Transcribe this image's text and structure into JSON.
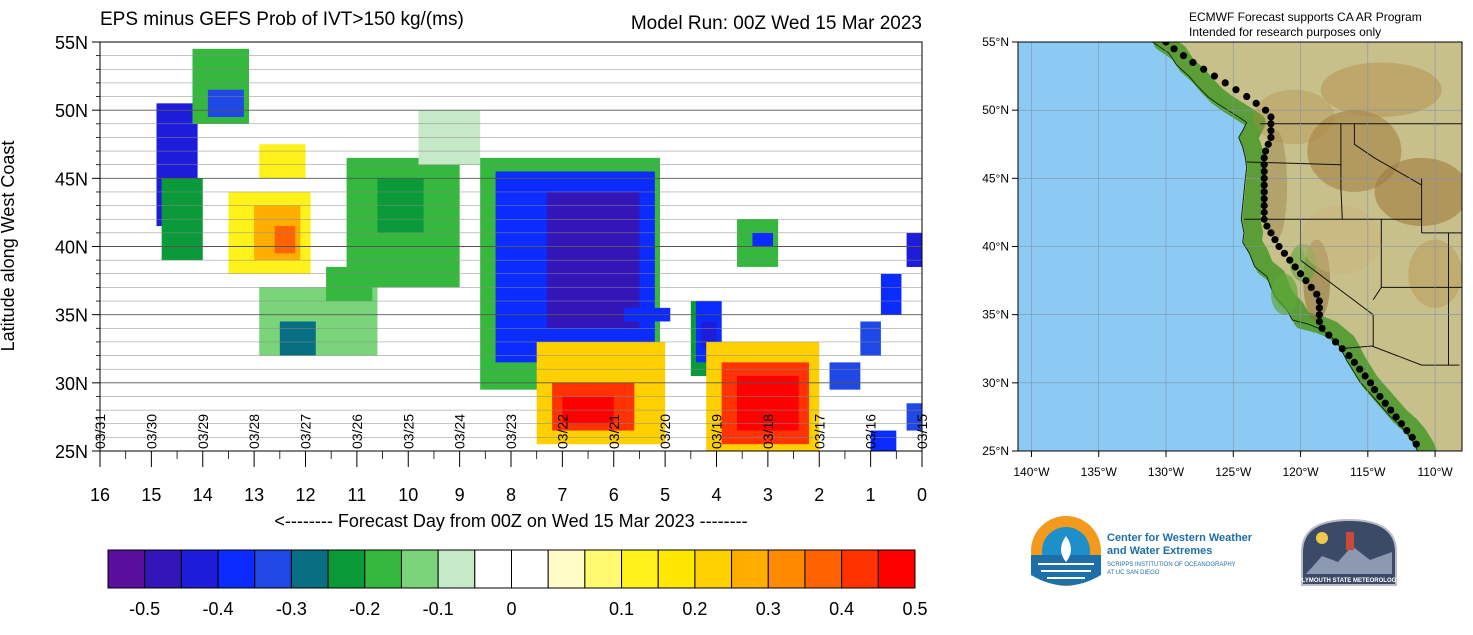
{
  "header": {
    "title": "EPS minus GEFS Prob of IVT>150 kg/(ms)",
    "model_run": "Model Run: 00Z Wed 15 Mar 2023"
  },
  "chart_data": [
    {
      "type": "heatmap",
      "title": "EPS minus GEFS Prob of IVT>150 kg/(ms)",
      "subtitle": "Model Run: 00Z Wed 15 Mar 2023",
      "xlabel": "<-------- Forecast Day from 00Z on Wed 15 Mar 2023 --------",
      "ylabel": "Latitude along West Coast",
      "xlim": [
        16,
        0
      ],
      "ylim": [
        25,
        55
      ],
      "x_ticks": [
        16,
        15,
        14,
        13,
        12,
        11,
        10,
        9,
        8,
        7,
        6,
        5,
        4,
        3,
        2,
        1,
        0
      ],
      "y_ticks": [
        "25N",
        "30N",
        "35N",
        "40N",
        "45N",
        "50N",
        "55N"
      ],
      "y_tick_values": [
        25,
        30,
        35,
        40,
        45,
        50,
        55
      ],
      "date_labels": [
        {
          "day": 16,
          "label": "03/31"
        },
        {
          "day": 15,
          "label": "03/30"
        },
        {
          "day": 14,
          "label": "03/29"
        },
        {
          "day": 13,
          "label": "03/28"
        },
        {
          "day": 12,
          "label": "03/27"
        },
        {
          "day": 11,
          "label": "03/26"
        },
        {
          "day": 10,
          "label": "03/25"
        },
        {
          "day": 9,
          "label": "03/24"
        },
        {
          "day": 8,
          "label": "03/23"
        },
        {
          "day": 7,
          "label": "03/22"
        },
        {
          "day": 6,
          "label": "03/21"
        },
        {
          "day": 5,
          "label": "03/20"
        },
        {
          "day": 4,
          "label": "03/19"
        },
        {
          "day": 3,
          "label": "03/18"
        },
        {
          "day": 2,
          "label": "03/17"
        },
        {
          "day": 1,
          "label": "03/16"
        },
        {
          "day": 0,
          "label": "03/15"
        }
      ],
      "grid": true,
      "regions": [
        {
          "day": [
            14.9,
            14.1
          ],
          "lat": [
            50.5,
            41.5
          ],
          "value": -0.45
        },
        {
          "day": [
            14.8,
            14.0
          ],
          "lat": [
            45.0,
            39.0
          ],
          "value": -0.25
        },
        {
          "day": [
            14.2,
            13.1
          ],
          "lat": [
            54.5,
            49.0
          ],
          "value": -0.2
        },
        {
          "day": [
            13.9,
            13.2
          ],
          "lat": [
            51.5,
            49.5
          ],
          "value": -0.35
        },
        {
          "day": [
            13.5,
            11.9
          ],
          "lat": [
            44.0,
            38.0
          ],
          "value": 0.1
        },
        {
          "day": [
            13.0,
            12.1
          ],
          "lat": [
            43.0,
            39.0
          ],
          "value": 0.25
        },
        {
          "day": [
            12.6,
            12.2
          ],
          "lat": [
            41.5,
            39.5
          ],
          "value": 0.35
        },
        {
          "day": [
            12.9,
            12.0
          ],
          "lat": [
            47.5,
            45.0
          ],
          "value": 0.1
        },
        {
          "day": [
            11.2,
            9.0
          ],
          "lat": [
            46.5,
            37.0
          ],
          "value": -0.2
        },
        {
          "day": [
            10.6,
            9.7
          ],
          "lat": [
            45.0,
            41.0
          ],
          "value": -0.25
        },
        {
          "day": [
            12.9,
            10.6
          ],
          "lat": [
            37.0,
            32.0
          ],
          "value": -0.15
        },
        {
          "day": [
            12.5,
            11.8
          ],
          "lat": [
            34.5,
            32.0
          ],
          "value": -0.3
        },
        {
          "day": [
            11.6,
            10.7
          ],
          "lat": [
            38.5,
            36.0
          ],
          "value": -0.2
        },
        {
          "day": [
            9.8,
            8.6
          ],
          "lat": [
            50.0,
            46.0
          ],
          "value": -0.1
        },
        {
          "day": [
            8.6,
            5.1
          ],
          "lat": [
            46.5,
            29.5
          ],
          "value": -0.2
        },
        {
          "day": [
            8.3,
            5.2
          ],
          "lat": [
            45.5,
            31.5
          ],
          "value": -0.4
        },
        {
          "day": [
            7.3,
            5.5
          ],
          "lat": [
            44.0,
            34.0
          ],
          "value": -0.5
        },
        {
          "day": [
            7.5,
            5.0
          ],
          "lat": [
            33.0,
            25.5
          ],
          "value": 0.2
        },
        {
          "day": [
            7.2,
            5.6
          ],
          "lat": [
            30.0,
            26.5
          ],
          "value": 0.4
        },
        {
          "day": [
            7.0,
            6.0
          ],
          "lat": [
            29.0,
            27.0
          ],
          "value": 0.5
        },
        {
          "day": [
            5.8,
            4.9
          ],
          "lat": [
            35.5,
            34.5
          ],
          "value": -0.4
        },
        {
          "day": [
            4.5,
            3.9
          ],
          "lat": [
            36.0,
            30.5
          ],
          "value": -0.25
        },
        {
          "day": [
            4.4,
            3.9
          ],
          "lat": [
            36.0,
            31.5
          ],
          "value": -0.4
        },
        {
          "day": [
            4.3,
            4.0
          ],
          "lat": [
            34.5,
            32.5
          ],
          "value": -0.45
        },
        {
          "day": [
            4.2,
            2.0
          ],
          "lat": [
            33.0,
            25.0
          ],
          "value": 0.2
        },
        {
          "day": [
            3.9,
            2.2
          ],
          "lat": [
            31.5,
            25.5
          ],
          "value": 0.4
        },
        {
          "day": [
            3.6,
            2.4
          ],
          "lat": [
            30.5,
            26.5
          ],
          "value": 0.5
        },
        {
          "day": [
            3.6,
            2.8
          ],
          "lat": [
            42.0,
            38.5
          ],
          "value": -0.2
        },
        {
          "day": [
            3.3,
            2.9
          ],
          "lat": [
            41.0,
            40.0
          ],
          "value": -0.4
        },
        {
          "day": [
            1.8,
            1.2
          ],
          "lat": [
            31.5,
            29.5
          ],
          "value": -0.35
        },
        {
          "day": [
            1.2,
            0.8
          ],
          "lat": [
            34.5,
            32.0
          ],
          "value": -0.35
        },
        {
          "day": [
            0.8,
            0.4
          ],
          "lat": [
            38.0,
            35.0
          ],
          "value": -0.4
        },
        {
          "day": [
            0.3,
            0.0
          ],
          "lat": [
            41.0,
            38.5
          ],
          "value": -0.45
        },
        {
          "day": [
            1.0,
            0.5
          ],
          "lat": [
            26.5,
            25.0
          ],
          "value": -0.4
        },
        {
          "day": [
            0.3,
            0.0
          ],
          "lat": [
            28.5,
            26.5
          ],
          "value": -0.35
        }
      ],
      "colorbar": {
        "colors": [
          "#5a0e9e",
          "#3415b8",
          "#1c1cd9",
          "#0b2bff",
          "#1f48e6",
          "#086f82",
          "#0a9a3a",
          "#34b83e",
          "#7ad47a",
          "#c6eac7",
          "#ffffff",
          "#ffffff",
          "#fffcc8",
          "#fffa70",
          "#fff21a",
          "#ffe700",
          "#ffd000",
          "#ffae00",
          "#ff8a00",
          "#ff6200",
          "#ff3300",
          "#ff0000"
        ],
        "labels": [
          "-0.5",
          "-0.4",
          "-0.3",
          "-0.2",
          "-0.1",
          "0",
          "0.1",
          "0.2",
          "0.3",
          "0.4",
          "0.5"
        ]
      }
    },
    {
      "type": "map",
      "x_ticks": [
        "140°W",
        "135°W",
        "130°W",
        "125°W",
        "120°W",
        "115°W",
        "110°W"
      ],
      "x_tick_values": [
        -140,
        -135,
        -130,
        -125,
        -120,
        -115,
        -110
      ],
      "y_ticks": [
        "25°N",
        "30°N",
        "35°N",
        "40°N",
        "45°N",
        "50°N",
        "55°N"
      ],
      "y_tick_values": [
        25,
        30,
        35,
        40,
        45,
        50,
        55
      ],
      "xlim": [
        -141,
        -108
      ],
      "ylim": [
        25,
        55
      ],
      "ocean_color": "#8ccaf4",
      "coast_points": [
        {
          "lon": -131.0,
          "lat": 55.0
        },
        {
          "lon": -129.8,
          "lat": 54.2
        },
        {
          "lon": -129.2,
          "lat": 53.3
        },
        {
          "lon": -128.3,
          "lat": 52.5
        },
        {
          "lon": -127.6,
          "lat": 51.7
        },
        {
          "lon": -126.9,
          "lat": 51.0
        },
        {
          "lon": -126.2,
          "lat": 50.5
        },
        {
          "lon": -125.4,
          "lat": 50.0
        },
        {
          "lon": -124.6,
          "lat": 49.5
        },
        {
          "lon": -124.0,
          "lat": 49.1
        },
        {
          "lon": -124.3,
          "lat": 48.5
        },
        {
          "lon": -124.6,
          "lat": 48.0
        },
        {
          "lon": -124.3,
          "lat": 47.3
        },
        {
          "lon": -124.1,
          "lat": 46.5
        },
        {
          "lon": -124.0,
          "lat": 45.8
        },
        {
          "lon": -124.1,
          "lat": 45.0
        },
        {
          "lon": -124.2,
          "lat": 44.0
        },
        {
          "lon": -124.3,
          "lat": 43.0
        },
        {
          "lon": -124.4,
          "lat": 42.0
        },
        {
          "lon": -124.2,
          "lat": 41.0
        },
        {
          "lon": -124.3,
          "lat": 40.3
        },
        {
          "lon": -123.8,
          "lat": 39.5
        },
        {
          "lon": -123.4,
          "lat": 38.5
        },
        {
          "lon": -122.5,
          "lat": 37.8
        },
        {
          "lon": -122.2,
          "lat": 37.0
        },
        {
          "lon": -121.9,
          "lat": 36.3
        },
        {
          "lon": -121.1,
          "lat": 35.5
        },
        {
          "lon": -120.6,
          "lat": 34.6
        },
        {
          "lon": -119.4,
          "lat": 34.3
        },
        {
          "lon": -118.4,
          "lat": 33.9
        },
        {
          "lon": -117.3,
          "lat": 33.0
        },
        {
          "lon": -117.0,
          "lat": 32.5
        },
        {
          "lon": -116.6,
          "lat": 31.7
        },
        {
          "lon": -116.1,
          "lat": 30.9
        },
        {
          "lon": -115.6,
          "lat": 30.1
        },
        {
          "lon": -114.9,
          "lat": 29.3
        },
        {
          "lon": -114.1,
          "lat": 28.4
        },
        {
          "lon": -113.4,
          "lat": 27.6
        },
        {
          "lon": -112.6,
          "lat": 26.9
        },
        {
          "lon": -112.0,
          "lat": 26.2
        },
        {
          "lon": -111.5,
          "lat": 25.4
        },
        {
          "lon": -111.3,
          "lat": 25.0
        }
      ],
      "track_points": [
        {
          "lon": -130.0,
          "lat": 55.0
        },
        {
          "lon": -129.4,
          "lat": 54.5
        },
        {
          "lon": -128.7,
          "lat": 54.0
        },
        {
          "lon": -128.0,
          "lat": 53.5
        },
        {
          "lon": -127.2,
          "lat": 53.0
        },
        {
          "lon": -126.4,
          "lat": 52.5
        },
        {
          "lon": -125.6,
          "lat": 52.0
        },
        {
          "lon": -124.8,
          "lat": 51.5
        },
        {
          "lon": -124.0,
          "lat": 51.0
        },
        {
          "lon": -123.3,
          "lat": 50.5
        },
        {
          "lon": -122.6,
          "lat": 50.0
        },
        {
          "lon": -122.2,
          "lat": 49.5
        },
        {
          "lon": -122.2,
          "lat": 49.0
        },
        {
          "lon": -122.2,
          "lat": 48.5
        },
        {
          "lon": -122.2,
          "lat": 48.0
        },
        {
          "lon": -122.4,
          "lat": 47.5
        },
        {
          "lon": -122.6,
          "lat": 47.0
        },
        {
          "lon": -122.7,
          "lat": 46.5
        },
        {
          "lon": -122.7,
          "lat": 46.0
        },
        {
          "lon": -122.7,
          "lat": 45.5
        },
        {
          "lon": -122.7,
          "lat": 45.0
        },
        {
          "lon": -122.7,
          "lat": 44.5
        },
        {
          "lon": -122.7,
          "lat": 44.0
        },
        {
          "lon": -122.7,
          "lat": 43.5
        },
        {
          "lon": -122.7,
          "lat": 43.0
        },
        {
          "lon": -122.7,
          "lat": 42.5
        },
        {
          "lon": -122.7,
          "lat": 42.0
        },
        {
          "lon": -122.5,
          "lat": 41.5
        },
        {
          "lon": -122.2,
          "lat": 41.0
        },
        {
          "lon": -121.9,
          "lat": 40.5
        },
        {
          "lon": -121.6,
          "lat": 40.0
        },
        {
          "lon": -121.2,
          "lat": 39.5
        },
        {
          "lon": -120.8,
          "lat": 39.0
        },
        {
          "lon": -120.4,
          "lat": 38.5
        },
        {
          "lon": -120.0,
          "lat": 38.0
        },
        {
          "lon": -119.6,
          "lat": 37.5
        },
        {
          "lon": -119.2,
          "lat": 37.0
        },
        {
          "lon": -118.8,
          "lat": 36.5
        },
        {
          "lon": -118.6,
          "lat": 36.0
        },
        {
          "lon": -118.6,
          "lat": 35.5
        },
        {
          "lon": -118.6,
          "lat": 35.0
        },
        {
          "lon": -118.6,
          "lat": 34.5
        },
        {
          "lon": -118.4,
          "lat": 34.0
        },
        {
          "lon": -117.9,
          "lat": 33.5
        },
        {
          "lon": -117.4,
          "lat": 33.0
        },
        {
          "lon": -116.9,
          "lat": 32.5
        },
        {
          "lon": -116.4,
          "lat": 32.0
        },
        {
          "lon": -116.0,
          "lat": 31.5
        },
        {
          "lon": -115.6,
          "lat": 31.0
        },
        {
          "lon": -115.2,
          "lat": 30.5
        },
        {
          "lon": -114.8,
          "lat": 30.0
        },
        {
          "lon": -114.5,
          "lat": 29.5
        },
        {
          "lon": -114.1,
          "lat": 29.0
        },
        {
          "lon": -113.7,
          "lat": 28.5
        },
        {
          "lon": -113.3,
          "lat": 28.0
        },
        {
          "lon": -112.9,
          "lat": 27.5
        },
        {
          "lon": -112.5,
          "lat": 27.0
        },
        {
          "lon": -112.1,
          "lat": 26.5
        },
        {
          "lon": -111.7,
          "lat": 26.0
        },
        {
          "lon": -111.4,
          "lat": 25.5
        }
      ]
    }
  ],
  "map_panel": {
    "credit_line1": "ECMWF Forecast supports CA AR Program",
    "credit_line2": "Intended for research purposes only"
  },
  "logos": {
    "cw3e_line1": "Center for Western Weather",
    "cw3e_line2": "and Water Extremes",
    "cw3e_line3": "SCRIPPS INSTITUTION OF OCEANOGRAPHY",
    "cw3e_line4": "AT UC SAN DIEGO",
    "plymouth_text": "PLYMOUTH STATE METEOROLOGY"
  },
  "colors": {
    "land_low": "#4f9a2e",
    "land_mid": "#c8c08a",
    "land_high": "#a07a3c",
    "track": "#000000",
    "cw3e_orange": "#f39a1e",
    "cw3e_blue": "#1d8fc9"
  }
}
